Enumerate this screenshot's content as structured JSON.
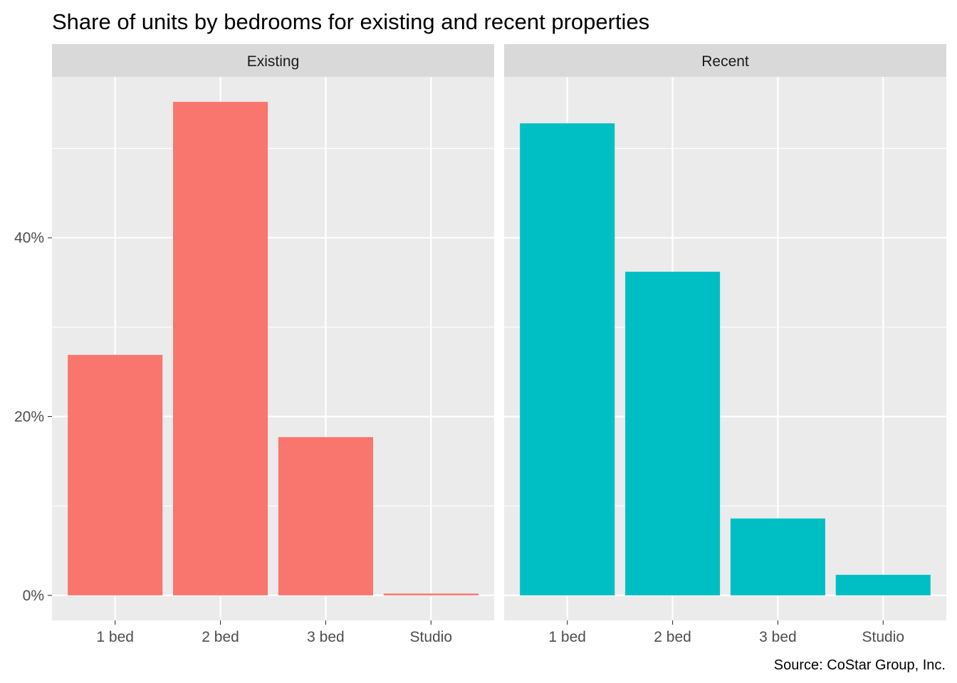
{
  "chart_data": {
    "type": "bar",
    "title": "Share of units by bedrooms for existing and recent properties",
    "caption": "Source: CoStar Group, Inc.",
    "xlabel": "",
    "ylabel": "",
    "categories": [
      "1 bed",
      "2 bed",
      "3 bed",
      "Studio"
    ],
    "y_ticks": [
      0,
      20,
      40
    ],
    "y_tick_labels": [
      "0%",
      "20%",
      "40%"
    ],
    "ylim": [
      -2.8,
      58.0
    ],
    "grid": true,
    "facets": [
      {
        "name": "Existing",
        "color": "#F8766D",
        "values": [
          26.9,
          55.2,
          17.7,
          0.2
        ]
      },
      {
        "name": "Recent",
        "color": "#00BFC4",
        "values": [
          52.8,
          36.2,
          8.6,
          2.3
        ]
      }
    ],
    "colors": {
      "panel_bg": "#EBEBEB",
      "strip_bg": "#D9D9D9",
      "grid": "#FFFFFF"
    }
  }
}
